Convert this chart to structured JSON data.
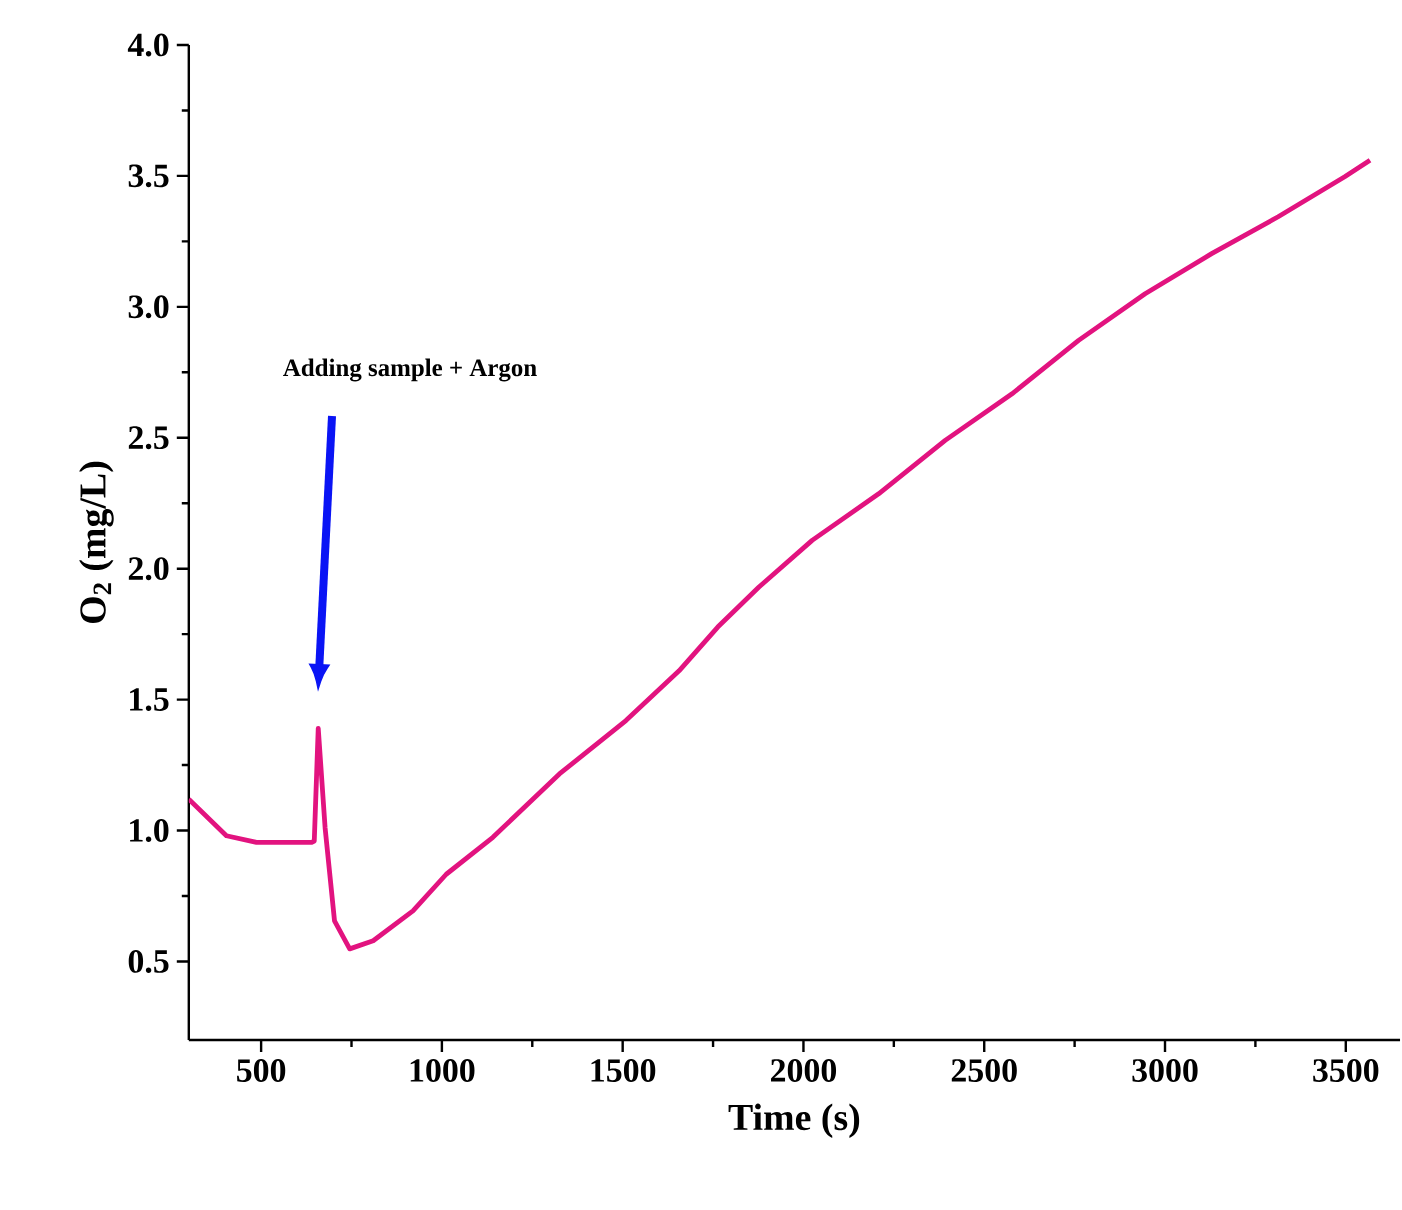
{
  "chart_data": {
    "type": "line",
    "xlabel": "Time (s)",
    "ylabel": "O$_{2}$ (mg/L)",
    "xlim": [
      300,
      3650
    ],
    "ylim": [
      0.2,
      4.0
    ],
    "xticks": [
      500,
      1000,
      1500,
      2000,
      2500,
      3000,
      3500
    ],
    "yticks": [
      {
        "value": 0.5,
        "label": "0.5"
      },
      {
        "value": 1.0,
        "label": "1.0"
      },
      {
        "value": 1.5,
        "label": "1.5"
      },
      {
        "value": 2.0,
        "label": "2.0"
      },
      {
        "value": 2.5,
        "label": "2.5"
      },
      {
        "value": 3.0,
        "label": "3.0"
      },
      {
        "value": 3.5,
        "label": "3.5"
      },
      {
        "value": 4.0,
        "label": "4.0"
      }
    ],
    "x": [
      300,
      404,
      487,
      640,
      647,
      658,
      677,
      703,
      745,
      810,
      920,
      1012,
      1141,
      1325,
      1509,
      1656,
      1763,
      1877,
      2024,
      2208,
      2392,
      2577,
      2761,
      2945,
      3129,
      3313,
      3497,
      3567
    ],
    "series": [
      {
        "color": "#e2137f",
        "values": [
          1.12,
          0.98,
          0.955,
          0.955,
          0.96,
          1.39,
          1.01,
          0.655,
          0.548,
          0.579,
          0.693,
          0.833,
          0.974,
          1.216,
          1.42,
          1.61,
          1.777,
          1.93,
          2.108,
          2.286,
          2.49,
          2.668,
          2.872,
          3.05,
          3.203,
          3.344,
          3.497,
          3.56
        ]
      }
    ],
    "annotations": [
      "Adding sample + Argon"
    ]
  }
}
